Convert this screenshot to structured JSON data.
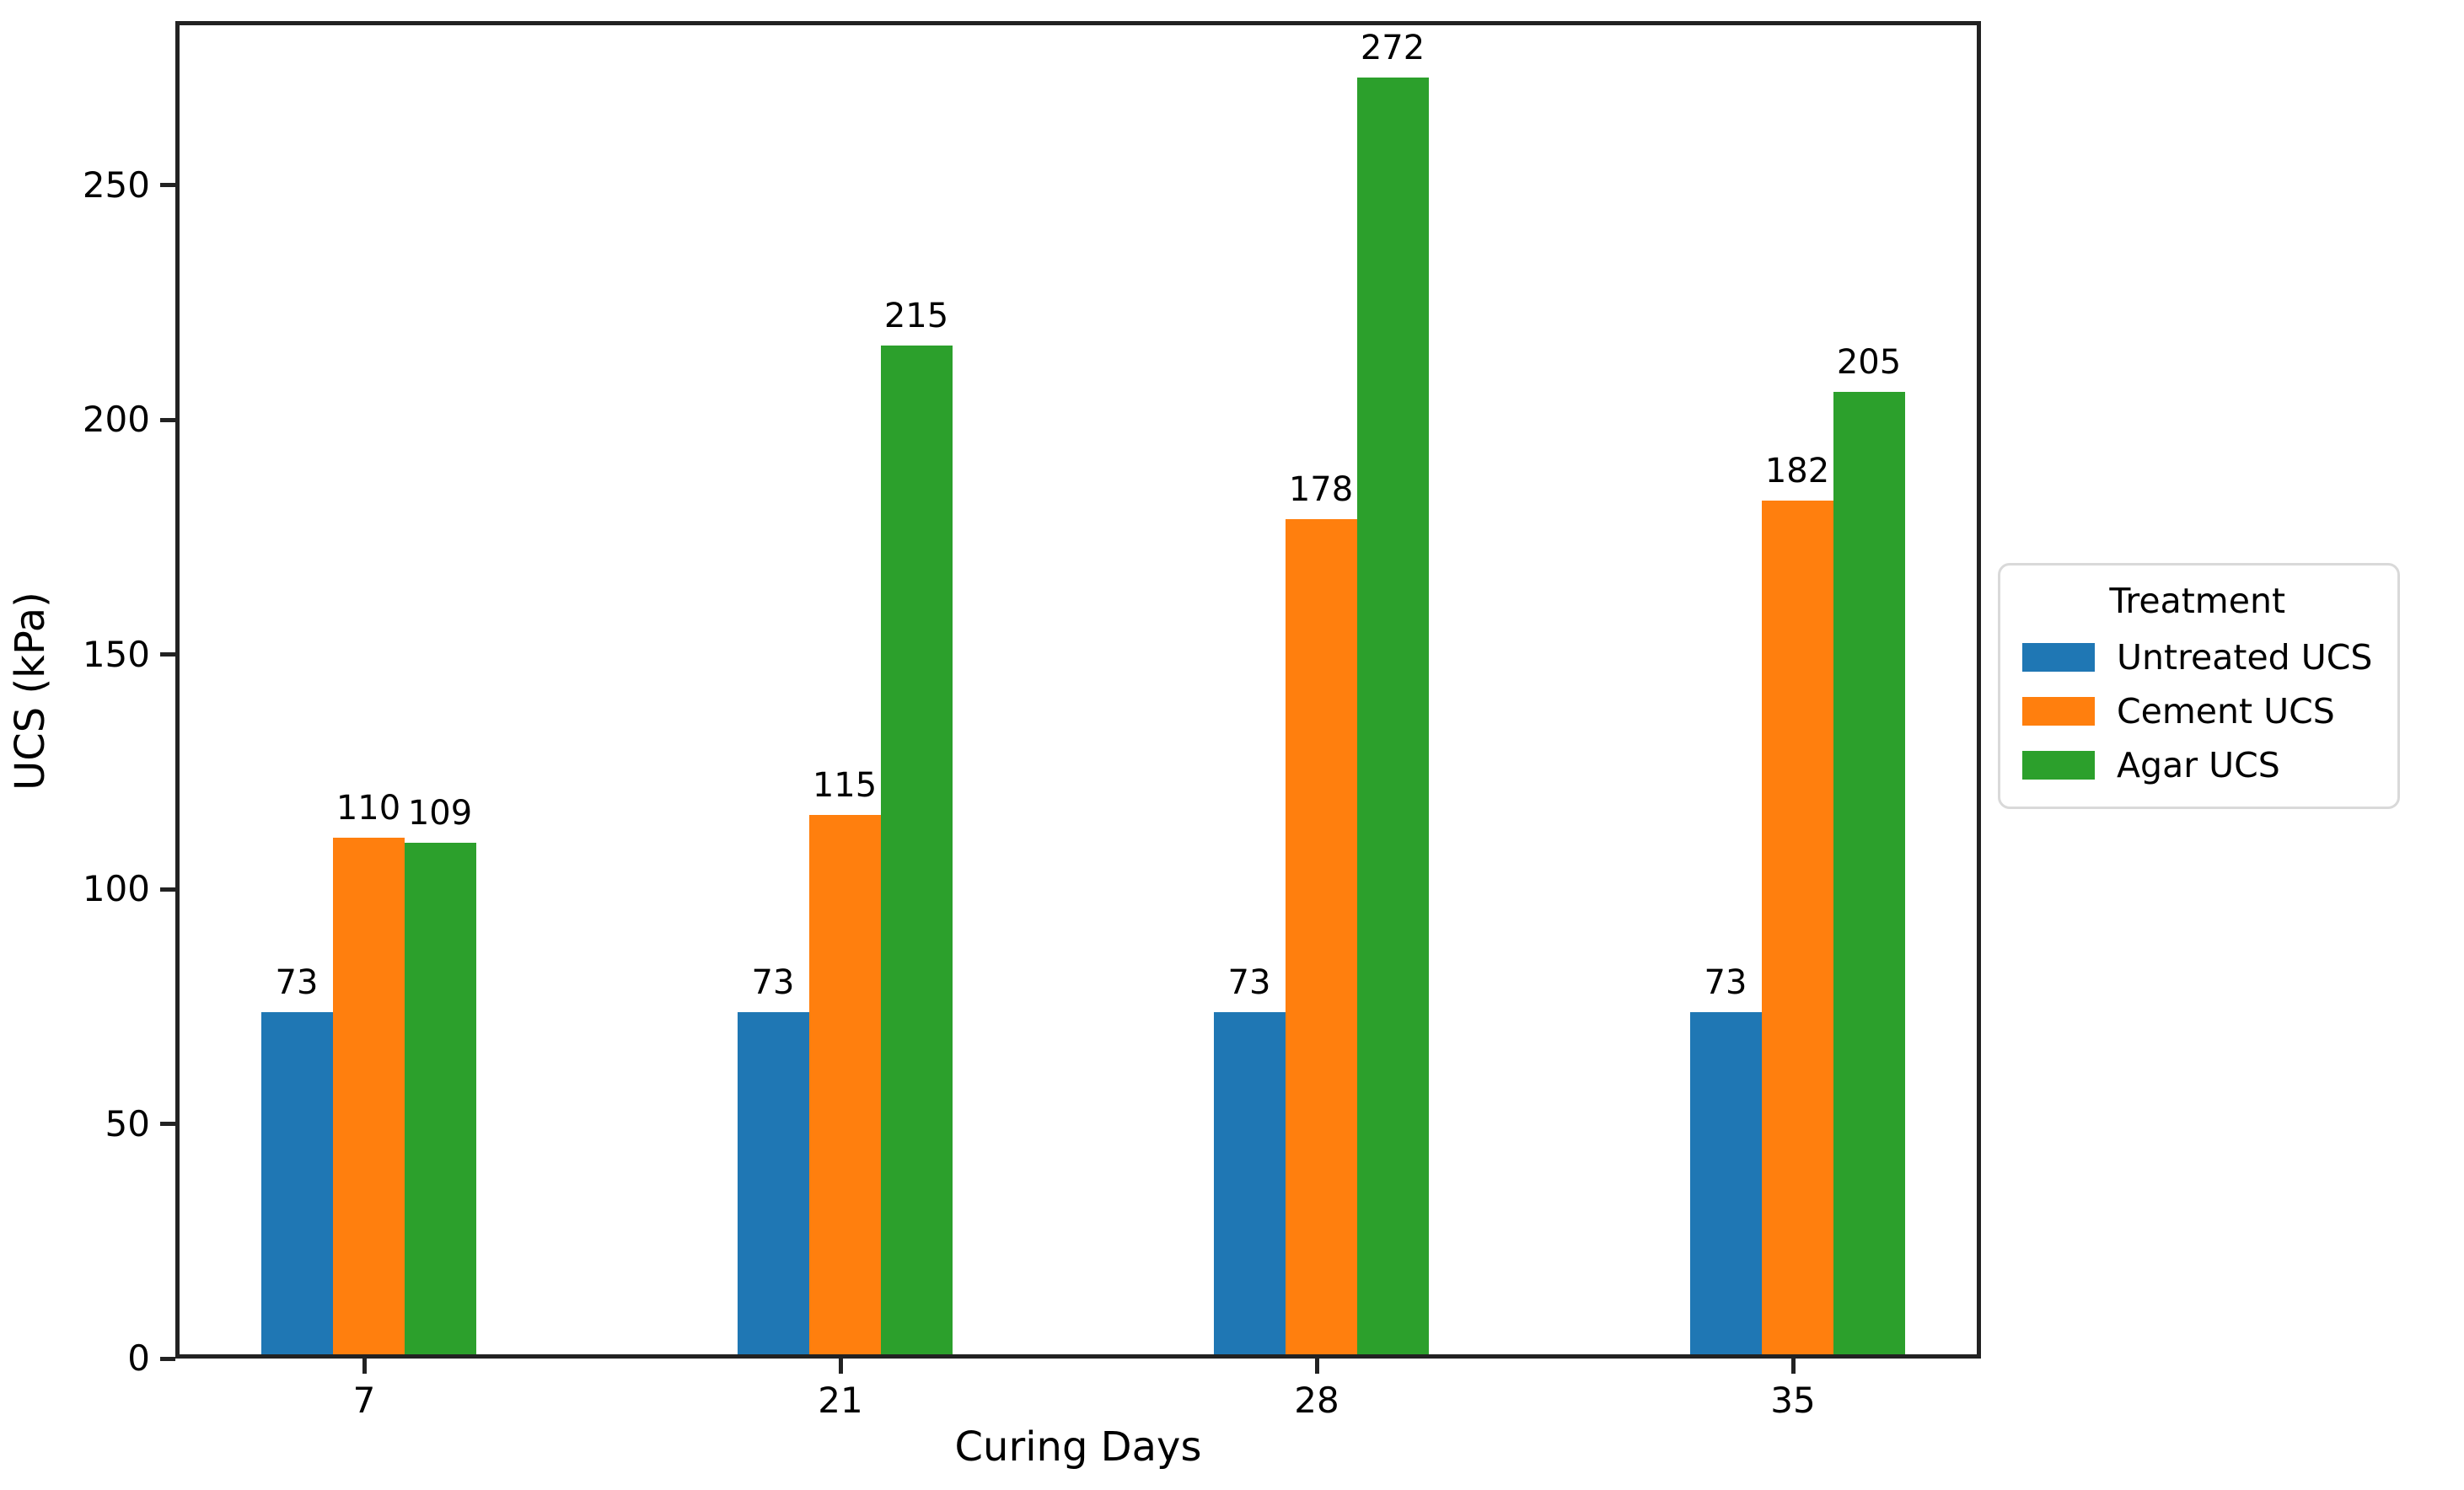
{
  "chart_data": {
    "type": "bar",
    "title": "",
    "xlabel": "Curing Days",
    "ylabel": "UCS (kPa)",
    "categories": [
      "7",
      "21",
      "28",
      "35"
    ],
    "series": [
      {
        "name": "Untreated UCS",
        "color": "#1f77b4",
        "values": [
          73,
          73,
          73,
          73
        ]
      },
      {
        "name": "Cement UCS",
        "color": "#ff7f0e",
        "values": [
          110,
          115,
          178,
          182
        ]
      },
      {
        "name": "Agar UCS",
        "color": "#2ca02c",
        "values": [
          109,
          215,
          272,
          205
        ]
      }
    ],
    "y_ticks": [
      0,
      50,
      100,
      150,
      200,
      250
    ],
    "ylim": [
      0,
      285
    ],
    "bar_value_labels": true,
    "grid": false,
    "legend": {
      "title": "Treatment",
      "position": "right-outside"
    },
    "colors": {
      "background": "#ffffff",
      "spine": "#222222",
      "text": "#000000",
      "legend_border": "#d9d9d9"
    }
  }
}
